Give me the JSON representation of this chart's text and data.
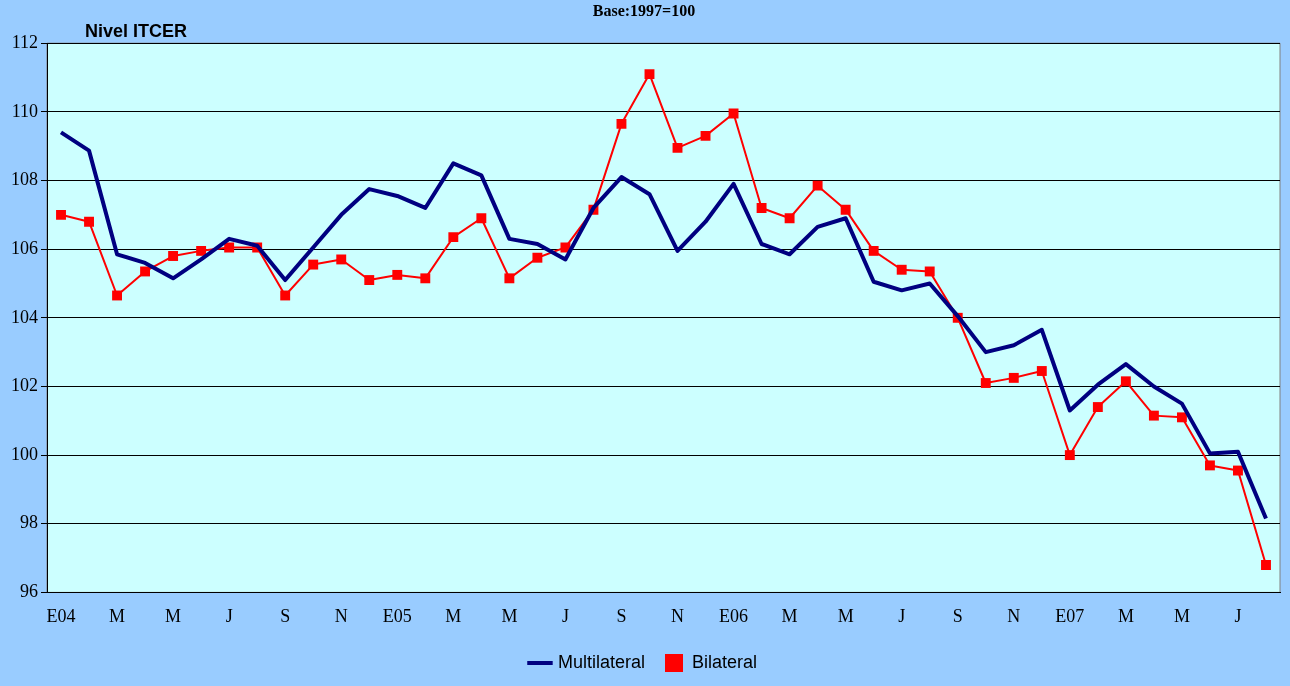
{
  "chart_data": {
    "type": "line",
    "title": "Base:1997=100",
    "ylabel": "Nivel ITCER",
    "categories": [
      "E04",
      null,
      "M",
      null,
      "M",
      null,
      "J",
      null,
      "S",
      null,
      "N",
      null,
      "E05",
      null,
      "M",
      null,
      "M",
      null,
      "J",
      null,
      "S",
      null,
      "N",
      null,
      "E06",
      null,
      "M",
      null,
      "M",
      null,
      "J",
      null,
      "S",
      null,
      "N",
      null,
      "E07",
      null,
      "M",
      null,
      "M",
      null,
      "J",
      null
    ],
    "series": [
      {
        "name": "Multilateral",
        "color": "#000080",
        "marker": "none",
        "values": [
          109.4,
          108.87,
          105.85,
          105.6,
          105.15,
          105.7,
          106.3,
          106.1,
          105.1,
          106.05,
          107.0,
          107.75,
          107.55,
          107.2,
          108.5,
          108.15,
          106.3,
          106.15,
          105.7,
          107.2,
          108.1,
          107.6,
          105.95,
          106.8,
          107.9,
          106.15,
          105.85,
          106.65,
          106.9,
          105.05,
          104.8,
          105.0,
          104.05,
          103.0,
          103.2,
          103.65,
          101.3,
          102.05,
          102.65,
          102.0,
          101.5,
          100.05,
          100.1,
          98.15
        ]
      },
      {
        "name": "Bilateral",
        "color": "#ff0000",
        "marker": "square",
        "values": [
          107.0,
          106.8,
          104.65,
          105.35,
          105.8,
          105.95,
          106.05,
          106.05,
          104.65,
          105.55,
          105.7,
          105.1,
          105.25,
          105.15,
          106.35,
          106.9,
          105.15,
          105.75,
          106.05,
          107.15,
          109.65,
          111.1,
          108.95,
          109.3,
          109.95,
          107.2,
          106.9,
          107.85,
          107.15,
          105.95,
          105.4,
          105.35,
          104.0,
          102.1,
          102.25,
          102.45,
          100.0,
          101.4,
          102.15,
          101.15,
          101.1,
          99.7,
          99.55,
          96.8
        ]
      }
    ],
    "ylim": [
      96,
      112
    ],
    "yticks": [
      96,
      98,
      100,
      102,
      104,
      106,
      108,
      110,
      112
    ],
    "grid": "y",
    "legend": "bottom"
  }
}
